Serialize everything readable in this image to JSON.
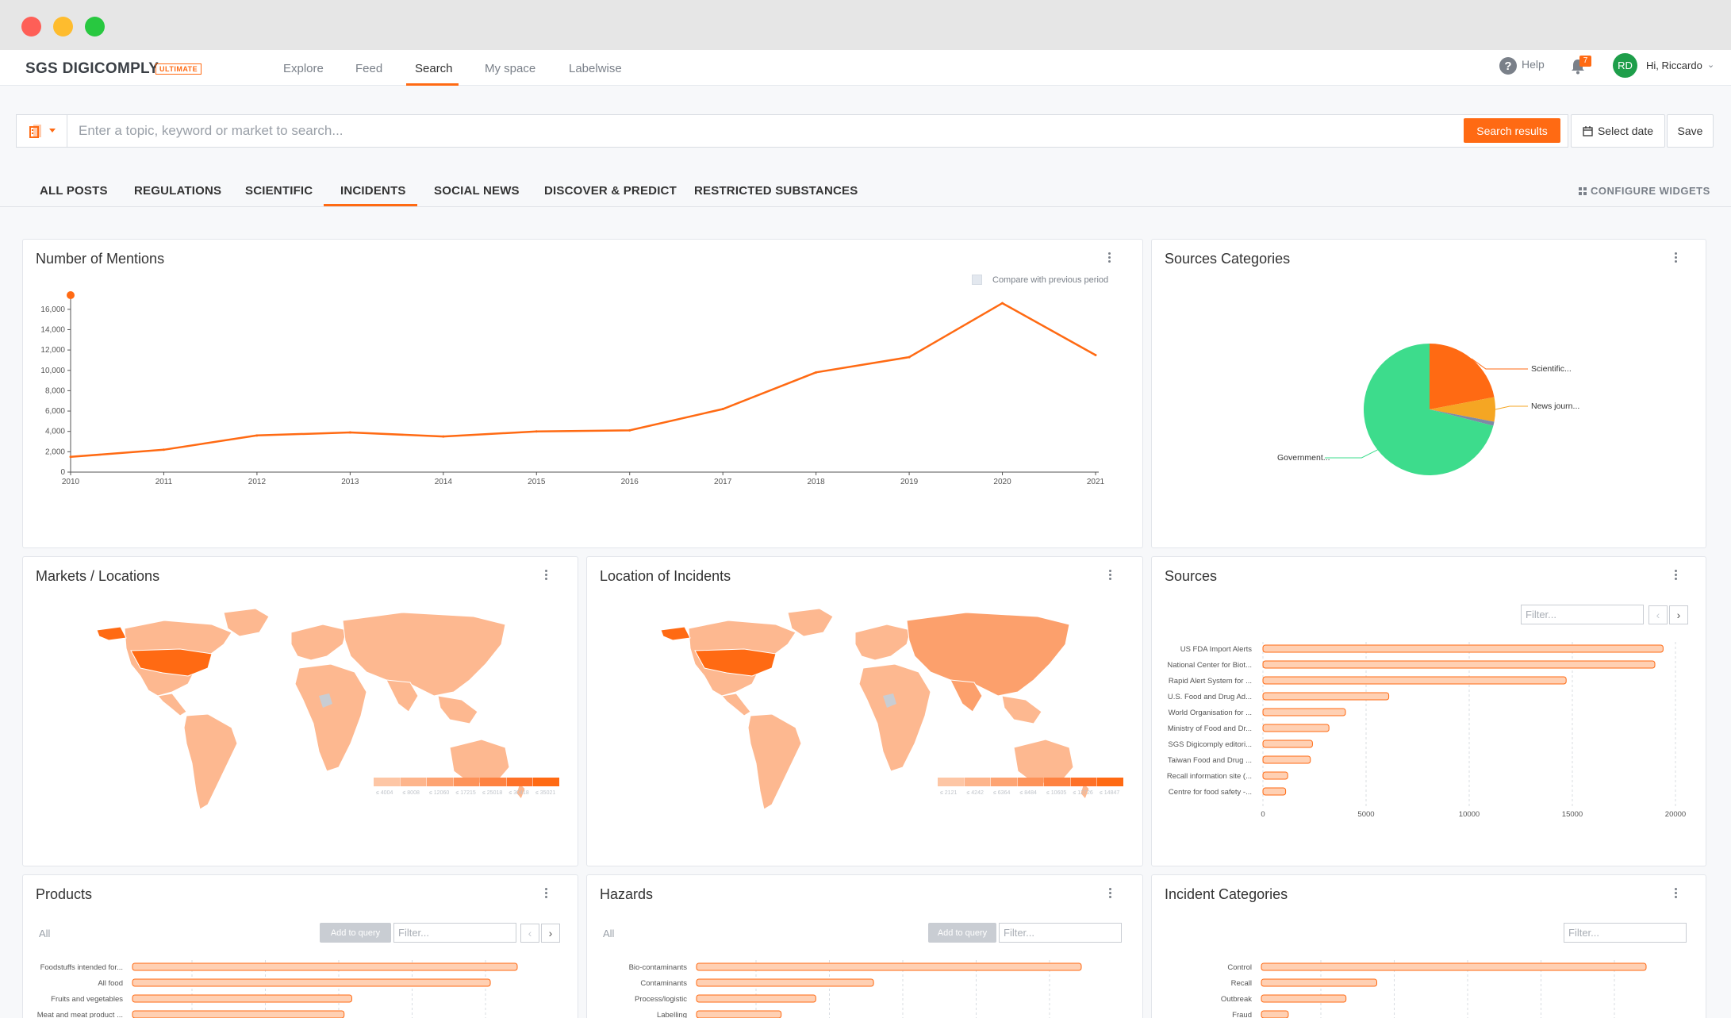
{
  "header": {
    "logo": "SGS DIGICOMPLY",
    "badge": "ULTIMATE",
    "nav": [
      "Explore",
      "Feed",
      "Search",
      "My space",
      "Labelwise"
    ],
    "active_nav": "Search",
    "help": "Help",
    "notification_count": "7",
    "avatar_initials": "RD",
    "greeting": "Hi, Riccardo"
  },
  "search": {
    "placeholder": "Enter a topic, keyword or market to search...",
    "search_button": "Search results",
    "select_date": "Select date",
    "save": "Save"
  },
  "tabs": [
    "ALL POSTS",
    "REGULATIONS",
    "SCIENTIFIC",
    "INCIDENTS",
    "SOCIAL NEWS",
    "DISCOVER & PREDICT",
    "RESTRICTED SUBSTANCES"
  ],
  "active_tab": "INCIDENTS",
  "configure_widgets": "CONFIGURE WIDGETS",
  "colors": {
    "accent": "#ff6a13",
    "government": "#3ddc8c",
    "news": "#f5a623",
    "scientific": "#ff6a13",
    "bar_fill": "#ffd0b3"
  },
  "widgets": {
    "mentions": {
      "title": "Number of Mentions",
      "compare_label": "Compare with previous period"
    },
    "sources_categories": {
      "title": "Sources Categories"
    },
    "markets": {
      "title": "Markets / Locations"
    },
    "location_incidents": {
      "title": "Location of Incidents"
    },
    "sources": {
      "title": "Sources",
      "filter_placeholder": "Filter..."
    },
    "products": {
      "title": "Products",
      "all": "All",
      "add_to_query": "Add to query",
      "filter_placeholder": "Filter..."
    },
    "hazards": {
      "title": "Hazards",
      "all": "All",
      "add_to_query": "Add to query",
      "filter_placeholder": "Filter..."
    },
    "incident_categories": {
      "title": "Incident Categories",
      "filter_placeholder": "Filter..."
    }
  },
  "chart_data": [
    {
      "type": "line",
      "title": "Number of Mentions",
      "x": [
        "2010",
        "2011",
        "2012",
        "2013",
        "2014",
        "2015",
        "2016",
        "2017",
        "2018",
        "2019",
        "2020",
        "2021"
      ],
      "series": [
        {
          "values": [
            1500,
            2200,
            3600,
            3900,
            3500,
            4000,
            4100,
            6200,
            9800,
            11300,
            16600,
            11500
          ]
        }
      ],
      "y_ticks": [
        0,
        2000,
        4000,
        6000,
        8000,
        10000,
        12000,
        14000,
        16000
      ],
      "y_tick_labels": [
        "0",
        "2,000",
        "4,000",
        "6,000",
        "8,000",
        "10,000",
        "12,000",
        "14,000",
        "16,000"
      ],
      "ylim": [
        0,
        17000
      ]
    },
    {
      "type": "pie",
      "title": "Sources Categories",
      "labels": [
        "Scientific...",
        "News journ...",
        "Government..."
      ],
      "values": [
        22,
        6,
        71
      ],
      "extra_slice": 1
    },
    {
      "type": "bar",
      "title": "Sources",
      "orientation": "horizontal",
      "categories": [
        "US FDA Import Alerts",
        "National Center for Biot...",
        "Rapid Alert System for ...",
        "U.S. Food and Drug Ad...",
        "World Organisation for ...",
        "Ministry of Food and Dr...",
        "SGS Digicomply editori...",
        "Taiwan Food and Drug ...",
        "Recall information site (...",
        "Centre for food safety -..."
      ],
      "values": [
        19400,
        19000,
        14700,
        6100,
        4000,
        3200,
        2400,
        2300,
        1200,
        1100
      ],
      "x_ticks": [
        "0",
        "5000",
        "10000",
        "15000",
        "20000"
      ],
      "xlim": [
        0,
        20000
      ]
    },
    {
      "type": "bar",
      "title": "Products",
      "orientation": "horizontal",
      "categories": [
        "Foodstuffs intended for...",
        "All food",
        "Fruits and vegetables",
        "Meat and meat product ..."
      ],
      "values": [
        100,
        93,
        57,
        55
      ]
    },
    {
      "type": "bar",
      "title": "Hazards",
      "orientation": "horizontal",
      "categories": [
        "Bio-contaminants",
        "Contaminants",
        "Process/logistic",
        "Labelling"
      ],
      "values": [
        100,
        46,
        31,
        22
      ]
    },
    {
      "type": "bar",
      "title": "Incident Categories",
      "orientation": "horizontal",
      "categories": [
        "Control",
        "Recall",
        "Outbreak",
        "Fraud"
      ],
      "values": [
        100,
        30,
        22,
        7
      ]
    }
  ],
  "map_legends": {
    "markets": [
      "≤ 4004",
      "≤ 8008",
      "≤ 12060",
      "≤ 17215",
      "≤ 25018",
      "≤ 30418",
      "≤ 35021"
    ],
    "location": [
      "≤ 2121",
      "≤ 4242",
      "≤ 6364",
      "≤ 8484",
      "≤ 10605",
      "≤ 12726",
      "≤ 14847"
    ]
  }
}
